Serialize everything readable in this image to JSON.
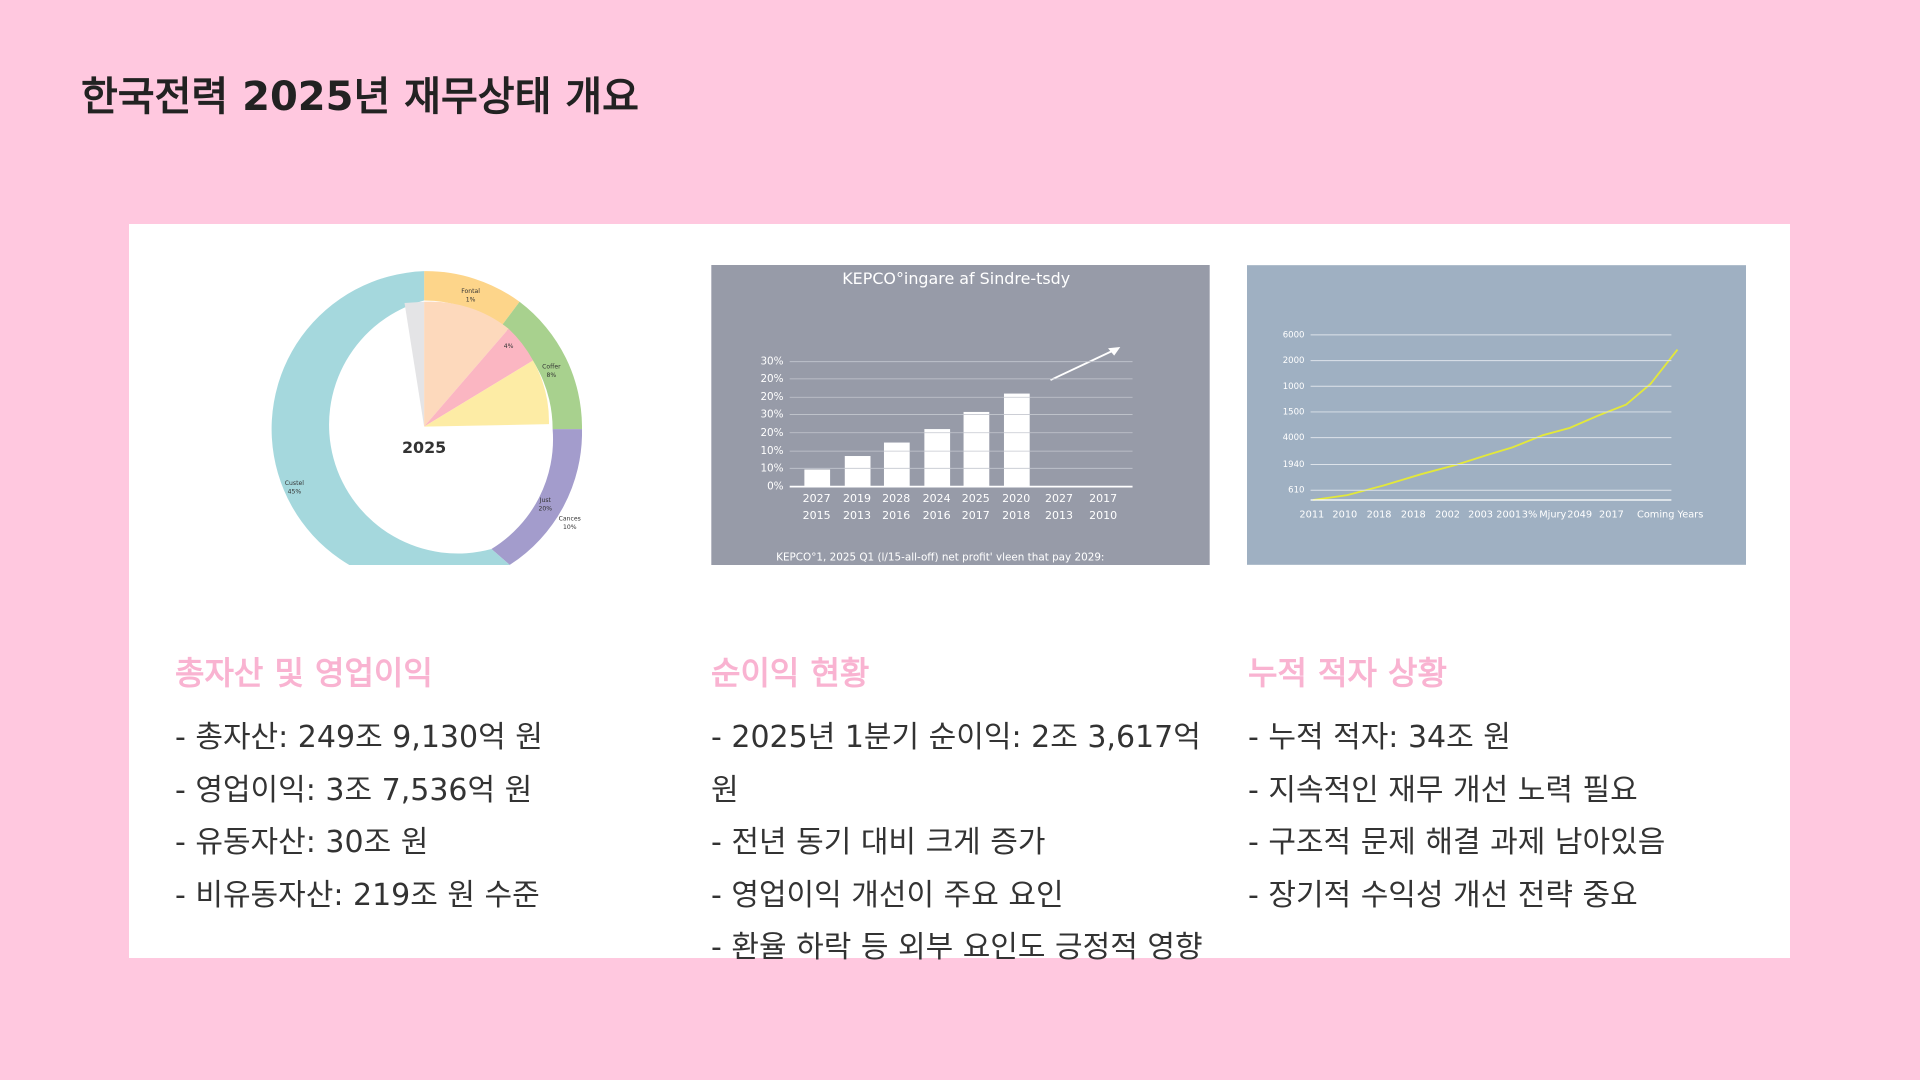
{
  "header": {
    "title": "한국전력 2025년 재무상태 개요"
  },
  "images": [
    {
      "labels": [
        "Fontal",
        "1%",
        "4%",
        "Coffer",
        "8%",
        "2025",
        "Custel",
        "45%",
        "Just",
        "20%",
        "Cances",
        "10%"
      ]
    },
    {
      "title": "KEPCO°ingare af Sindre-tsdy",
      "y_labels": [
        "30%",
        "20%",
        "20%",
        "30%",
        "20%",
        "10%",
        "10%",
        "0%"
      ],
      "x_labels_top": [
        "2027",
        "2019",
        "2028",
        "2024",
        "2025",
        "2020",
        "2027",
        "2017"
      ],
      "x_labels_bottom": [
        "2015",
        "2013",
        "2016",
        "2016",
        "2017",
        "2018",
        "2013",
        "2010"
      ],
      "caption": "KEPCO°1, 2025 Q1 (l/15-all-off) net profit' vleen that pay 2029:"
    },
    {
      "y_labels": [
        "6000",
        "2000",
        "1000",
        "1500",
        "4000",
        "1940",
        "610"
      ],
      "x_labels": [
        "2011",
        "2010",
        "2018",
        "2018",
        "2002",
        "2003",
        "2001",
        "3%",
        "Mjury",
        "2049",
        "2017",
        "Coming Years"
      ]
    }
  ],
  "columns": [
    {
      "heading": "총자산 및 영업이익",
      "items": [
        "- 총자산: 249조 9,130억 원",
        "- 영업이익: 3조 7,536억 원",
        "- 유동자산: 30조 원",
        "- 비유동자산: 219조 원 수준"
      ]
    },
    {
      "heading": "순이익 현황",
      "items": [
        "- 2025년 1분기 순이익: 2조 3,617억 원",
        "- 전년 동기 대비 크게 증가",
        "- 영업이익 개선이 주요 요인",
        "- 환율 하락 등 외부 요인도 긍정적 영향"
      ]
    },
    {
      "heading": "누적 적자 상황",
      "items": [
        "- 누적 적자: 34조 원",
        "- 지속적인 재무 개선 노력 필요",
        "- 구조적 문제 해결 과제 남아있음",
        "- 장기적 수익성 개선 전략 중요"
      ]
    }
  ]
}
